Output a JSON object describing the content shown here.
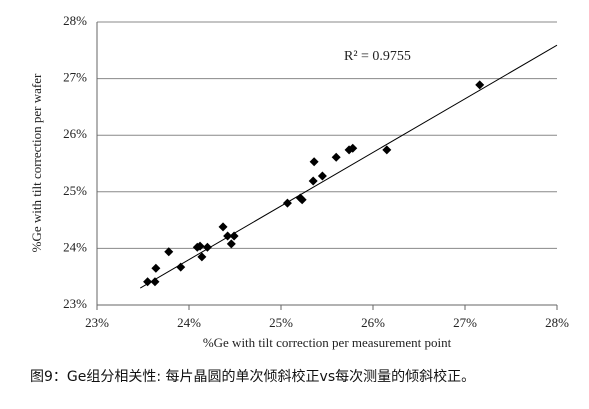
{
  "chart_data": {
    "type": "scatter",
    "x_label": "%Ge with tilt correction per measurement point",
    "y_label": "%Ge with tilt correction per wafer",
    "annotation": "R² = 0.9755",
    "caption": "图9：Ge组分相关性: 每片晶圆的单次倾斜校正vs每次测量的倾斜校正。",
    "series": [
      {
        "color": "#000000",
        "x": [
          23.55,
          23.63,
          23.64,
          23.78,
          23.91,
          24.09,
          24.12,
          24.14,
          24.2,
          24.37,
          24.42,
          24.46,
          24.49,
          25.07,
          25.21,
          25.23,
          25.35,
          25.36,
          25.45,
          25.6,
          25.74,
          25.78,
          26.15,
          27.16
        ],
        "values": [
          23.41,
          23.41,
          23.65,
          23.94,
          23.67,
          24.02,
          24.04,
          23.85,
          24.02,
          24.38,
          24.22,
          24.08,
          24.22,
          24.8,
          24.89,
          24.86,
          25.19,
          25.53,
          25.28,
          25.61,
          25.74,
          25.77,
          25.74,
          26.89
        ]
      }
    ],
    "trendline": {
      "color": "#000000",
      "x": [
        23.47,
        28
      ],
      "values": [
        23.3,
        27.59
      ]
    },
    "xlim": [
      23,
      28
    ],
    "ylim": [
      23,
      28
    ],
    "xticks": [
      {
        "value": 23,
        "label": "23%"
      },
      {
        "value": 24,
        "label": "24%"
      },
      {
        "value": 25,
        "label": "25%"
      },
      {
        "value": 26,
        "label": "26%"
      },
      {
        "value": 27,
        "label": "27%"
      },
      {
        "value": 28,
        "label": "28%"
      }
    ],
    "yticks": [
      {
        "value": 23,
        "label": "23%"
      },
      {
        "value": 24,
        "label": "24%"
      },
      {
        "value": 25,
        "label": "25%"
      },
      {
        "value": 26,
        "label": "26%"
      },
      {
        "value": 27,
        "label": "27%"
      },
      {
        "value": 28,
        "label": "28%"
      }
    ],
    "grid": true
  }
}
